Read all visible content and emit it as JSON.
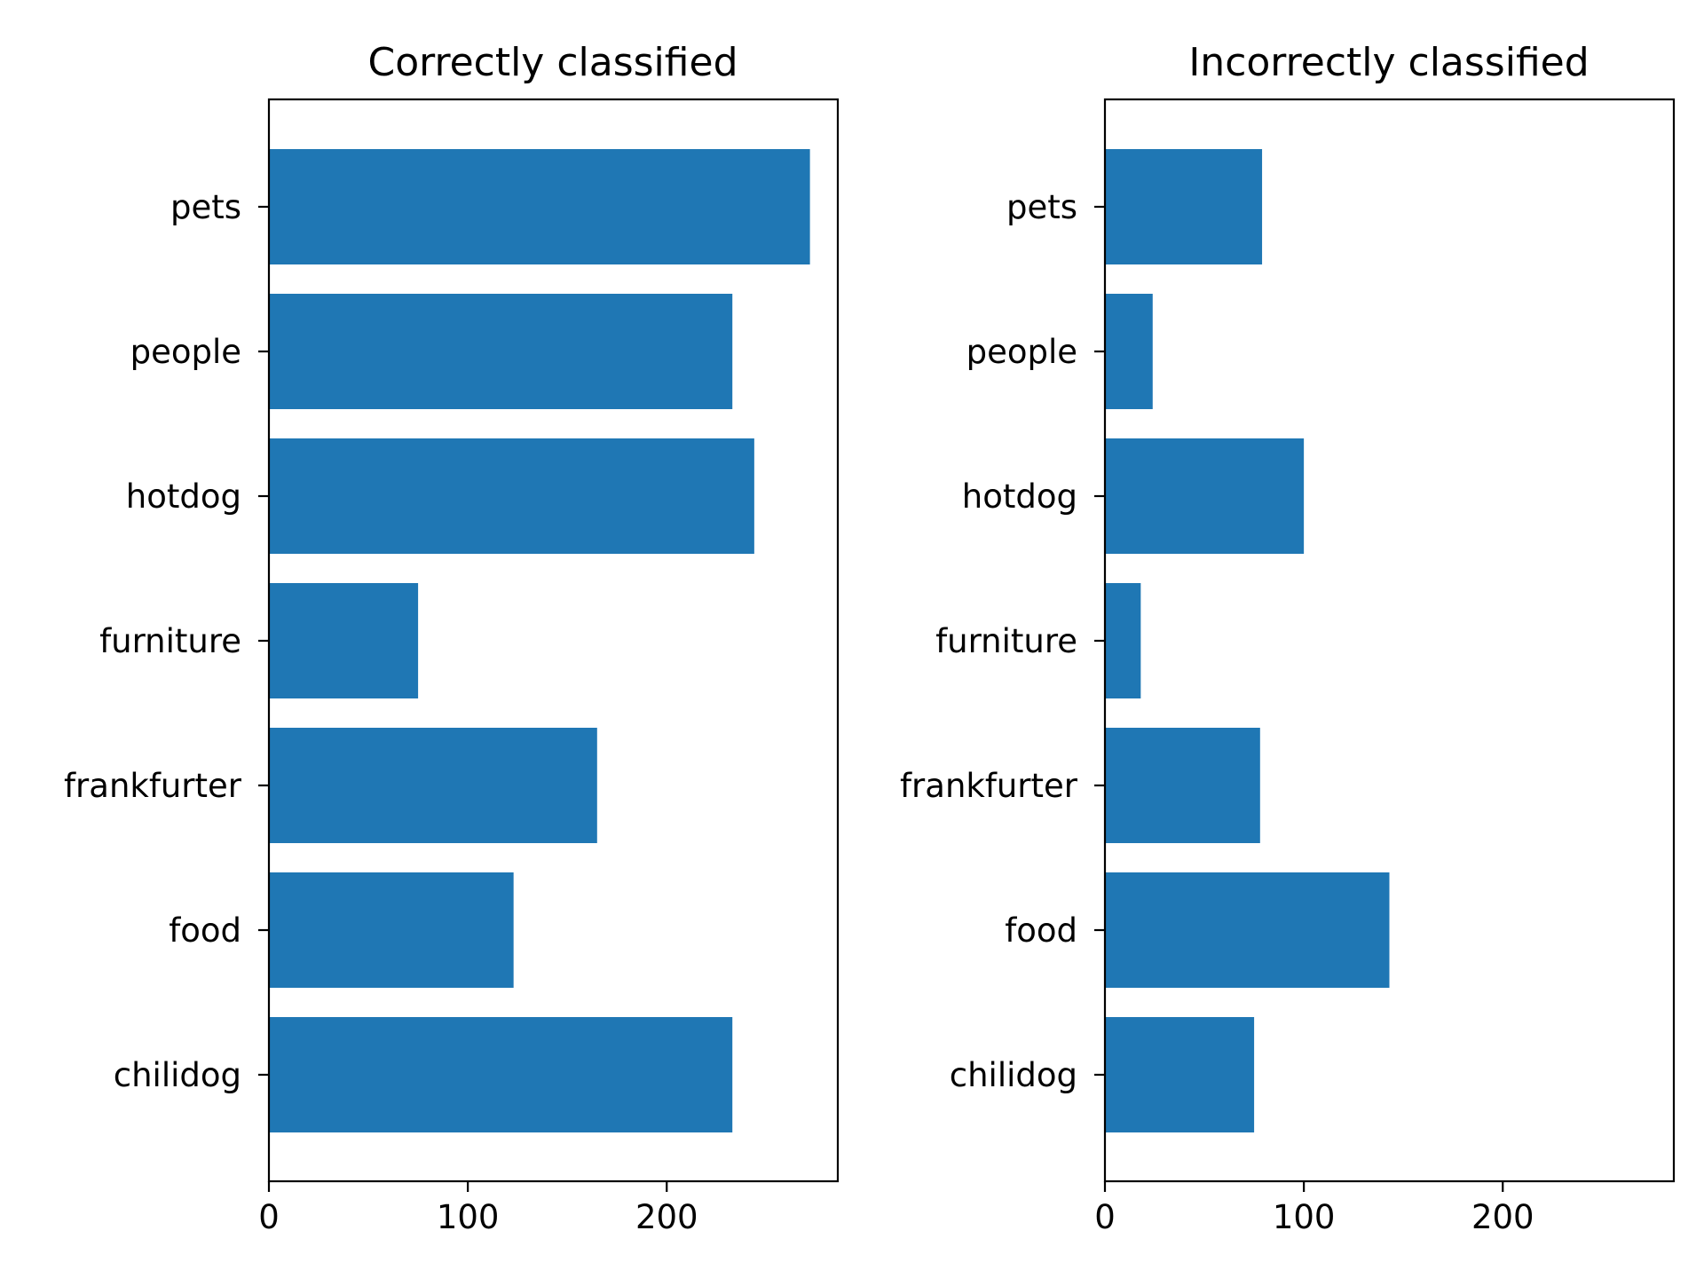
{
  "chart_data": [
    {
      "type": "bar",
      "orientation": "horizontal",
      "title": "Correctly classified",
      "categories": [
        "chilidog",
        "food",
        "frankfurter",
        "furniture",
        "hotdog",
        "people",
        "pets"
      ],
      "values": [
        233,
        123,
        165,
        75,
        244,
        233,
        272
      ],
      "xlim": [
        0,
        286
      ],
      "xticks": [
        0,
        100,
        200
      ],
      "xlabel": "",
      "ylabel": "",
      "grid": false,
      "color": "#1f77b4"
    },
    {
      "type": "bar",
      "orientation": "horizontal",
      "title": "Incorrectly classified",
      "categories": [
        "chilidog",
        "food",
        "frankfurter",
        "furniture",
        "hotdog",
        "people",
        "pets"
      ],
      "values": [
        75,
        143,
        78,
        18,
        100,
        24,
        79
      ],
      "xlim": [
        0,
        286
      ],
      "xticks": [
        0,
        100,
        200
      ],
      "xlabel": "",
      "ylabel": "",
      "grid": false,
      "color": "#1f77b4"
    }
  ]
}
